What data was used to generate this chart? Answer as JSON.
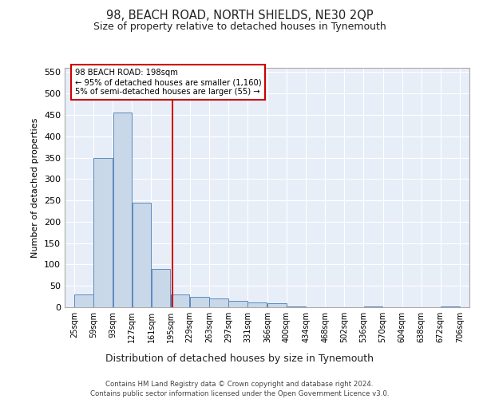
{
  "title": "98, BEACH ROAD, NORTH SHIELDS, NE30 2QP",
  "subtitle": "Size of property relative to detached houses in Tynemouth",
  "xlabel": "Distribution of detached houses by size in Tynemouth",
  "ylabel": "Number of detached properties",
  "bar_color": "#c8d8e8",
  "bar_edge_color": "#5a8abf",
  "background_color": "#e8eef8",
  "grid_color": "#ffffff",
  "vline_x": 198,
  "vline_color": "#cc0000",
  "annotation_text": "98 BEACH ROAD: 198sqm\n← 95% of detached houses are smaller (1,160)\n5% of semi-detached houses are larger (55) →",
  "annotation_box_color": "#ffffff",
  "annotation_box_edge": "#cc0000",
  "footer_line1": "Contains HM Land Registry data © Crown copyright and database right 2024.",
  "footer_line2": "Contains public sector information licensed under the Open Government Licence v3.0.",
  "bin_edges": [
    25,
    59,
    93,
    127,
    161,
    195,
    229,
    263,
    297,
    331,
    366,
    400,
    434,
    468,
    502,
    536,
    570,
    604,
    638,
    672,
    706
  ],
  "bar_heights": [
    30,
    350,
    455,
    245,
    90,
    30,
    25,
    20,
    15,
    12,
    10,
    1,
    0,
    0,
    0,
    1,
    0,
    0,
    0,
    1
  ],
  "ylim": [
    0,
    560
  ],
  "yticks": [
    0,
    50,
    100,
    150,
    200,
    250,
    300,
    350,
    400,
    450,
    500,
    550
  ]
}
